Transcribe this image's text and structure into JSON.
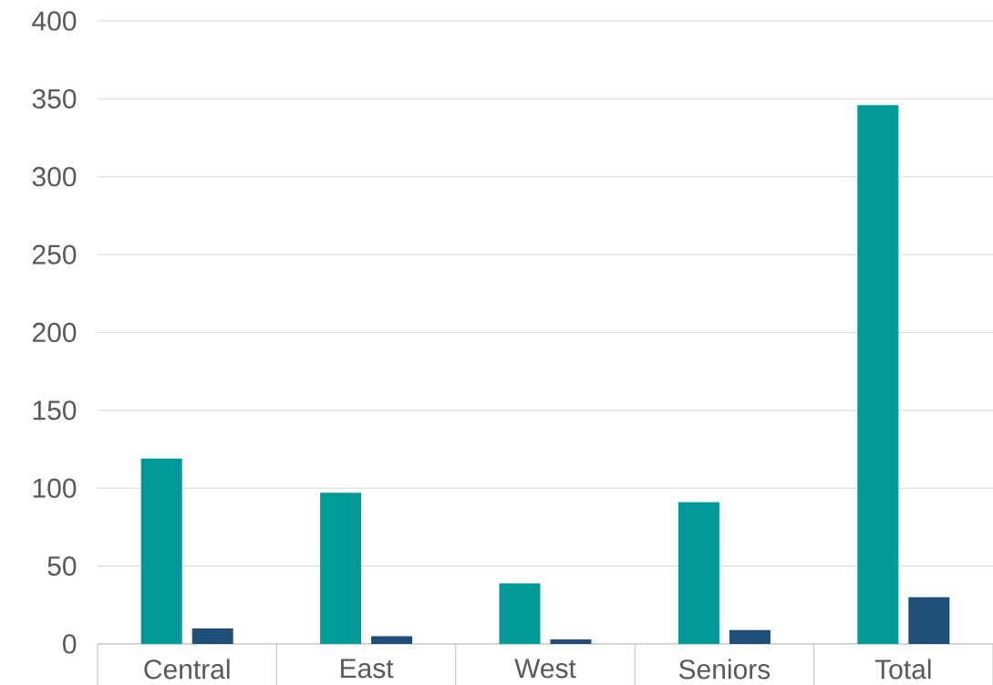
{
  "chart_data": {
    "type": "bar",
    "categories": [
      "Central",
      "East",
      "West",
      "Seniors",
      "Total"
    ],
    "series": [
      {
        "color": "#009999",
        "values": [
          119,
          97,
          39,
          91,
          346
        ]
      },
      {
        "color": "#1f4e79",
        "values": [
          10,
          5,
          3,
          9,
          30
        ]
      }
    ],
    "ylim": [
      0,
      400
    ],
    "yticks": [
      0,
      50,
      100,
      150,
      200,
      250,
      300,
      350,
      400
    ],
    "grid": "y"
  }
}
